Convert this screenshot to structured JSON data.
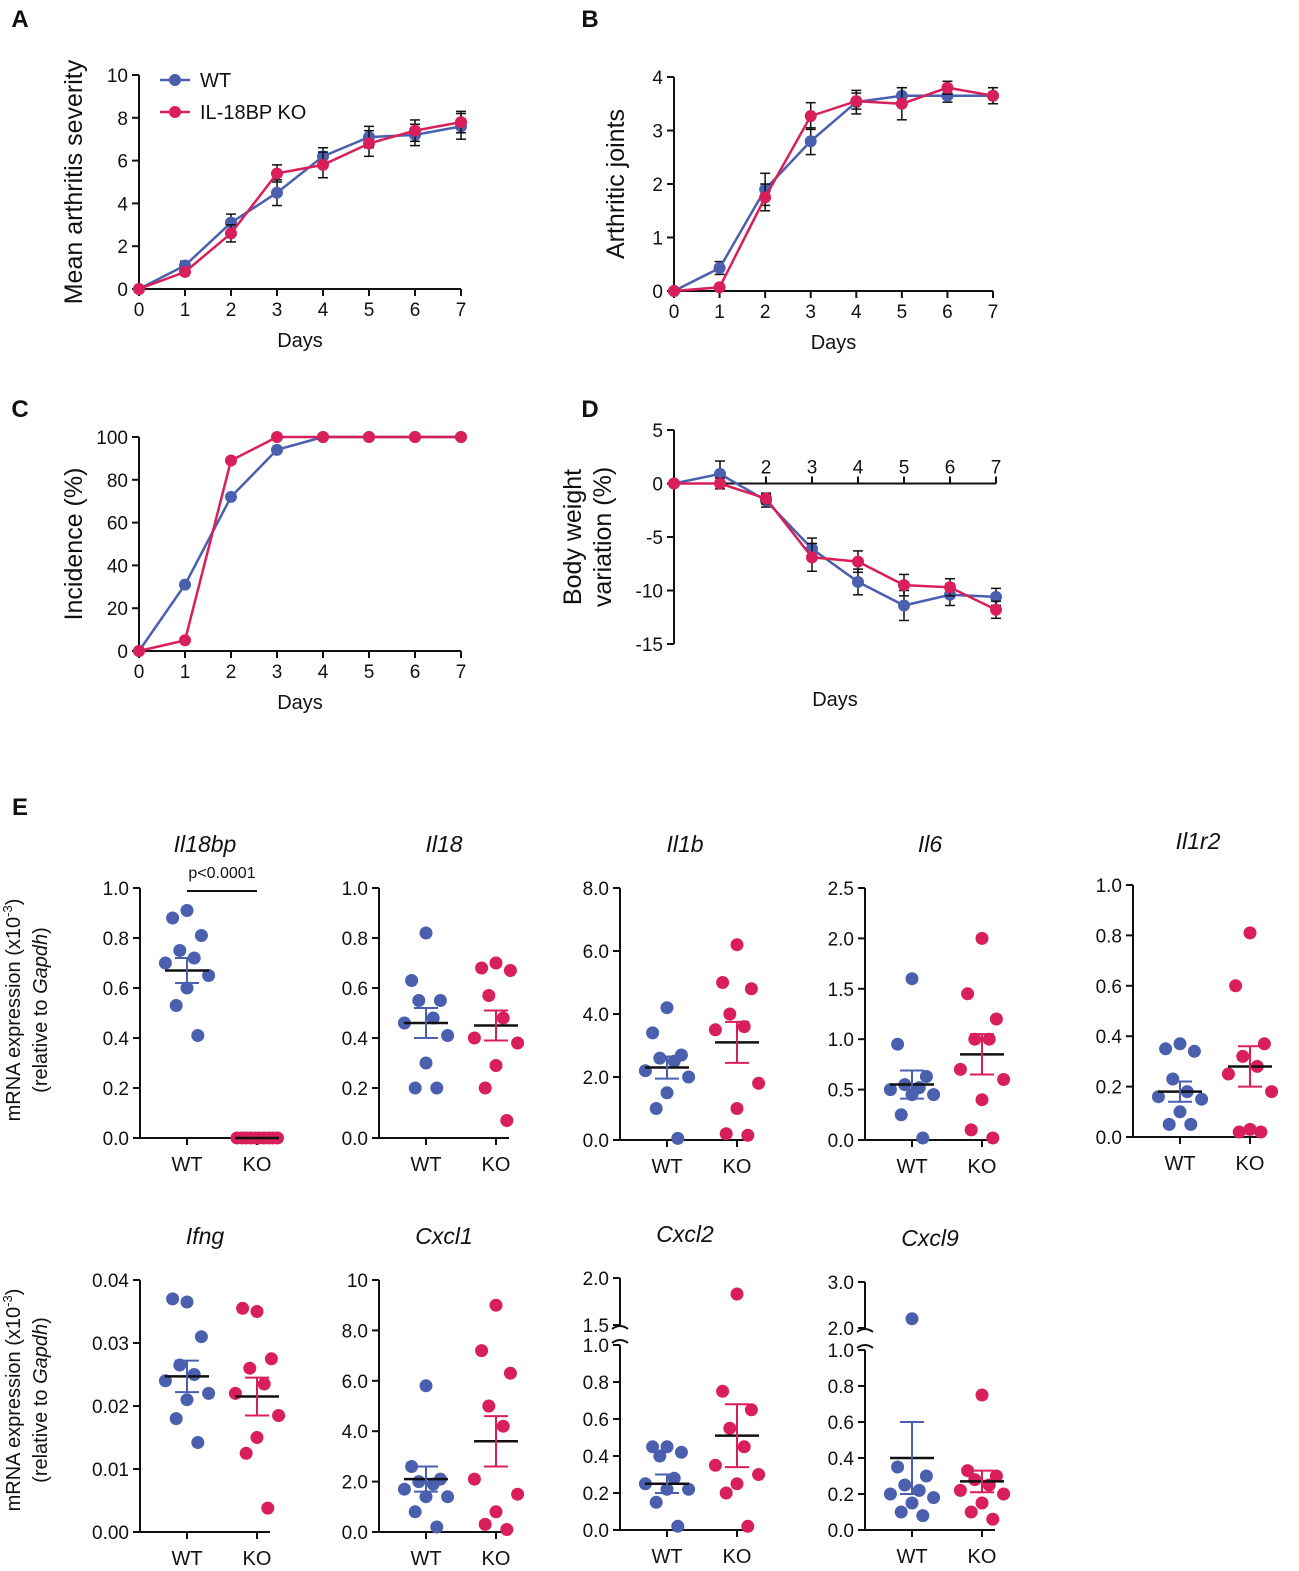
{
  "colors": {
    "wt": "#4a5fae",
    "ko": "#d81f5a",
    "axis": "#111111"
  },
  "chart_data": [
    {
      "panel": "A",
      "type": "line",
      "xlabel": "Days",
      "ylabel": "Mean arthritis severity",
      "xlim": [
        0,
        7
      ],
      "ylim": [
        0,
        10
      ],
      "xticks": [
        "0",
        "1",
        "2",
        "3",
        "4",
        "5",
        "6",
        "7"
      ],
      "yticks": [
        "0",
        "2",
        "4",
        "6",
        "8",
        "10"
      ],
      "legend": [
        "WT",
        "IL-18BP KO"
      ],
      "legend_position": "top-left",
      "x": [
        0,
        1,
        2,
        3,
        4,
        5,
        6,
        7
      ],
      "series": [
        {
          "name": "WT",
          "values": [
            0,
            1.1,
            3.1,
            4.5,
            6.2,
            7.1,
            7.2,
            7.6
          ],
          "err": [
            0,
            0.2,
            0.4,
            0.6,
            0.4,
            0.5,
            0.5,
            0.6
          ]
        },
        {
          "name": "IL-18BP KO",
          "values": [
            0,
            0.8,
            2.6,
            5.4,
            5.8,
            6.8,
            7.4,
            7.8
          ],
          "err": [
            0,
            0.15,
            0.4,
            0.4,
            0.6,
            0.6,
            0.5,
            0.5
          ]
        }
      ]
    },
    {
      "panel": "B",
      "type": "line",
      "xlabel": "Days",
      "ylabel": "Arthritic joints",
      "xlim": [
        0,
        7
      ],
      "ylim": [
        0,
        4
      ],
      "xticks": [
        "0",
        "1",
        "2",
        "3",
        "4",
        "5",
        "6",
        "7"
      ],
      "yticks": [
        "0",
        "1",
        "2",
        "3",
        "4"
      ],
      "x": [
        0,
        1,
        2,
        3,
        4,
        5,
        6,
        7
      ],
      "series": [
        {
          "name": "WT",
          "values": [
            0,
            0.43,
            1.9,
            2.8,
            3.53,
            3.65,
            3.65,
            3.65
          ],
          "err": [
            0,
            0.12,
            0.3,
            0.25,
            0.22,
            0.15,
            0.12,
            0.15
          ]
        },
        {
          "name": "IL-18BP KO",
          "values": [
            0,
            0.07,
            1.75,
            3.27,
            3.55,
            3.5,
            3.8,
            3.65
          ],
          "err": [
            0,
            0.05,
            0.25,
            0.25,
            0.15,
            0.3,
            0.12,
            0.15
          ]
        }
      ]
    },
    {
      "panel": "C",
      "type": "line",
      "xlabel": "Days",
      "ylabel": "Incidence (%)",
      "xlim": [
        0,
        7
      ],
      "ylim": [
        0,
        100
      ],
      "xticks": [
        "0",
        "1",
        "2",
        "3",
        "4",
        "5",
        "6",
        "7"
      ],
      "yticks": [
        "0",
        "20",
        "40",
        "60",
        "80",
        "100"
      ],
      "x": [
        0,
        1,
        2,
        3,
        4,
        5,
        6,
        7
      ],
      "series": [
        {
          "name": "WT",
          "values": [
            0,
            31,
            72,
            94,
            100,
            100,
            100,
            100
          ]
        },
        {
          "name": "IL-18BP KO",
          "values": [
            0,
            5,
            89,
            100,
            100,
            100,
            100,
            100
          ]
        }
      ]
    },
    {
      "panel": "D",
      "type": "line",
      "xlabel": "Days",
      "ylabel_line1": "Body weight",
      "ylabel_line2": "variation (%)",
      "xlim": [
        0,
        7
      ],
      "ylim": [
        -15,
        5
      ],
      "xticks": [
        "2",
        "3",
        "4",
        "5",
        "6",
        "7"
      ],
      "yticks": [
        "5",
        "0",
        "-5",
        "-10",
        "-15"
      ],
      "x": [
        0,
        1,
        2,
        3,
        4,
        5,
        6,
        7
      ],
      "series": [
        {
          "name": "WT",
          "values": [
            0,
            0.9,
            -1.6,
            -6.1,
            -9.2,
            -11.4,
            -10.4,
            -10.6
          ],
          "err": [
            0,
            1.2,
            0.6,
            1,
            1.2,
            1.4,
            1,
            0.8
          ]
        },
        {
          "name": "IL-18BP KO",
          "values": [
            0,
            0,
            -1.4,
            -6.9,
            -7.3,
            -9.5,
            -9.7,
            -11.8
          ],
          "err": [
            0,
            0.5,
            0.5,
            1.3,
            1,
            1,
            0.8,
            0.8
          ]
        }
      ]
    },
    {
      "panel": "E",
      "type": "scatter",
      "gene": "Il18bp",
      "ylim": [
        0,
        1
      ],
      "yticks": [
        "0.0",
        "0.2",
        "0.4",
        "0.6",
        "0.8",
        "1.0"
      ],
      "categories": [
        "WT",
        "KO"
      ],
      "annotation": "p<0.0001",
      "series": [
        {
          "name": "WT",
          "points": [
            0.91,
            0.88,
            0.81,
            0.75,
            0.72,
            0.7,
            0.65,
            0.6,
            0.53,
            0.41
          ],
          "mean": 0.67,
          "sem": 0.05
        },
        {
          "name": "KO",
          "points": [
            0,
            0,
            0,
            0,
            0,
            0,
            0,
            0,
            0,
            0
          ],
          "mean": 0,
          "sem": 0
        }
      ]
    },
    {
      "panel": "E",
      "type": "scatter",
      "gene": "Il18",
      "ylim": [
        0,
        1
      ],
      "yticks": [
        "0.0",
        "0.2",
        "0.4",
        "0.6",
        "0.8",
        "1.0"
      ],
      "categories": [
        "WT",
        "KO"
      ],
      "series": [
        {
          "name": "WT",
          "points": [
            0.82,
            0.63,
            0.55,
            0.55,
            0.48,
            0.46,
            0.41,
            0.3,
            0.2,
            0.2
          ],
          "mean": 0.46,
          "sem": 0.06
        },
        {
          "name": "KO",
          "points": [
            0.7,
            0.68,
            0.67,
            0.57,
            0.48,
            0.4,
            0.38,
            0.29,
            0.2,
            0.07
          ],
          "mean": 0.45,
          "sem": 0.06
        }
      ]
    },
    {
      "panel": "E",
      "type": "scatter",
      "gene": "Il1b",
      "ylim": [
        0,
        8
      ],
      "yticks": [
        "0.0",
        "2.0",
        "4.0",
        "6.0",
        "8.0"
      ],
      "categories": [
        "WT",
        "KO"
      ],
      "series": [
        {
          "name": "WT",
          "points": [
            4.2,
            3.4,
            2.7,
            2.6,
            2.5,
            2.2,
            2.0,
            1.5,
            1.0,
            0.05
          ],
          "mean": 2.3,
          "sem": 0.35
        },
        {
          "name": "KO",
          "points": [
            6.2,
            5.0,
            4.8,
            4.0,
            3.6,
            3.5,
            1.8,
            1.0,
            0.2,
            0.15
          ],
          "mean": 3.1,
          "sem": 0.65
        }
      ]
    },
    {
      "panel": "E",
      "type": "scatter",
      "gene": "Il6",
      "ylim": [
        0,
        2.5
      ],
      "yticks": [
        "0.0",
        "0.5",
        "1.0",
        "1.5",
        "2.0",
        "2.5"
      ],
      "categories": [
        "WT",
        "KO"
      ],
      "series": [
        {
          "name": "WT",
          "points": [
            1.6,
            0.95,
            0.63,
            0.55,
            0.52,
            0.5,
            0.45,
            0.45,
            0.25,
            0.02
          ],
          "mean": 0.55,
          "sem": 0.14
        },
        {
          "name": "KO",
          "points": [
            2.0,
            1.45,
            1.2,
            1.0,
            1.0,
            0.7,
            0.6,
            0.4,
            0.1,
            0.02
          ],
          "mean": 0.85,
          "sem": 0.2
        }
      ]
    },
    {
      "panel": "E",
      "type": "scatter",
      "gene": "Il1r2",
      "ylim": [
        0,
        1
      ],
      "yticks": [
        "0.0",
        "0.2",
        "0.4",
        "0.6",
        "0.8",
        "1.0"
      ],
      "categories": [
        "WT",
        "KO"
      ],
      "series": [
        {
          "name": "WT",
          "points": [
            0.37,
            0.35,
            0.34,
            0.23,
            0.18,
            0.16,
            0.15,
            0.1,
            0.05,
            0.05
          ],
          "mean": 0.18,
          "sem": 0.04
        },
        {
          "name": "KO",
          "points": [
            0.81,
            0.6,
            0.37,
            0.32,
            0.28,
            0.25,
            0.18,
            0.03,
            0.02,
            0.02
          ],
          "mean": 0.28,
          "sem": 0.08
        }
      ]
    },
    {
      "panel": "E",
      "type": "scatter",
      "gene": "Ifng",
      "ylim": [
        0,
        0.04
      ],
      "yticks": [
        "0.00",
        "0.01",
        "0.02",
        "0.03",
        "0.04"
      ],
      "categories": [
        "WT",
        "KO"
      ],
      "series": [
        {
          "name": "WT",
          "points": [
            0.0365,
            0.037,
            0.031,
            0.0265,
            0.025,
            0.024,
            0.022,
            0.021,
            0.018,
            0.0142
          ],
          "mean": 0.0247,
          "sem": 0.0025
        },
        {
          "name": "KO",
          "points": [
            0.035,
            0.0355,
            0.0275,
            0.026,
            0.0235,
            0.022,
            0.0185,
            0.015,
            0.0125,
            0.0038
          ],
          "mean": 0.0215,
          "sem": 0.003
        }
      ]
    },
    {
      "panel": "E",
      "type": "scatter",
      "gene": "Cxcl1",
      "ylim": [
        0,
        10
      ],
      "yticks": [
        "0.0",
        "2.0",
        "4.0",
        "6.0",
        "8.0",
        "10"
      ],
      "categories": [
        "WT",
        "KO"
      ],
      "series": [
        {
          "name": "WT",
          "points": [
            5.8,
            2.6,
            2.1,
            2.0,
            1.9,
            1.7,
            1.4,
            1.4,
            0.8,
            0.2
          ],
          "mean": 2.1,
          "sem": 0.5
        },
        {
          "name": "KO",
          "points": [
            9.0,
            7.2,
            6.3,
            5.0,
            4.2,
            2.1,
            1.5,
            0.8,
            0.3,
            0.1
          ],
          "mean": 3.6,
          "sem": 1.0
        }
      ]
    },
    {
      "panel": "E",
      "type": "scatter",
      "gene": "Cxcl2",
      "y_break": true,
      "ylim": [
        0,
        2
      ],
      "yticks": [
        "0.0",
        "0.2",
        "0.4",
        "0.6",
        "0.8",
        "1.0",
        "1.5",
        "2.0"
      ],
      "categories": [
        "WT",
        "KO"
      ],
      "series": [
        {
          "name": "WT",
          "points": [
            0.45,
            0.45,
            0.42,
            0.4,
            0.28,
            0.25,
            0.22,
            0.22,
            0.15,
            0.02
          ],
          "mean": 0.25,
          "sem": 0.05
        },
        {
          "name": "KO",
          "points": [
            1.83,
            0.75,
            0.65,
            0.55,
            0.45,
            0.35,
            0.3,
            0.25,
            0.2,
            0.02
          ],
          "mean": 0.51,
          "sem": 0.17
        }
      ]
    },
    {
      "panel": "E",
      "type": "scatter",
      "gene": "Cxcl9",
      "y_break": true,
      "ylim": [
        0,
        3
      ],
      "yticks": [
        "0.0",
        "0.2",
        "0.4",
        "0.6",
        "0.8",
        "1.0",
        "2.0",
        "3.0"
      ],
      "categories": [
        "WT",
        "KO"
      ],
      "series": [
        {
          "name": "WT",
          "points": [
            2.2,
            0.35,
            0.3,
            0.25,
            0.22,
            0.2,
            0.18,
            0.15,
            0.1,
            0.08
          ],
          "mean": 0.4,
          "sem": 0.2
        },
        {
          "name": "KO",
          "points": [
            0.75,
            0.33,
            0.3,
            0.28,
            0.25,
            0.22,
            0.2,
            0.15,
            0.1,
            0.06
          ],
          "mean": 0.27,
          "sem": 0.06
        }
      ]
    }
  ],
  "texts": {
    "panel_labels": [
      "A",
      "B",
      "C",
      "D",
      "E"
    ],
    "e_ylabel_line1": "mRNA expression (x10",
    "e_ylabel_exp": "-3",
    "e_ylabel_close": ")",
    "e_ylabel_line2_pre": "(relative to ",
    "e_ylabel_line2_gene": "Gapdh",
    "e_ylabel_line2_post": ")"
  }
}
